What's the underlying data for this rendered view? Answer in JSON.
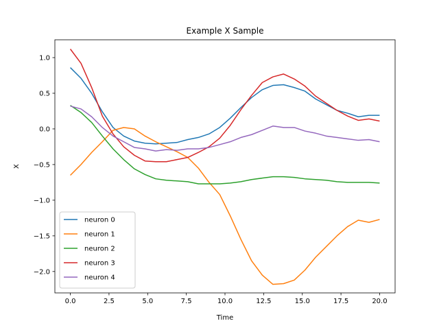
{
  "chart_data": {
    "type": "line",
    "title": "Example X Sample",
    "xlabel": "Time",
    "ylabel": "X",
    "xlim": [
      -1.0,
      21.0
    ],
    "ylim": [
      -2.3,
      1.25
    ],
    "xticks": [
      0.0,
      2.5,
      5.0,
      7.5,
      10.0,
      12.5,
      15.0,
      17.5,
      20.0
    ],
    "xtick_labels": [
      "0.0",
      "2.5",
      "5.0",
      "7.5",
      "10.0",
      "12.5",
      "15.0",
      "17.5",
      "20.0"
    ],
    "yticks": [
      1.0,
      0.5,
      0.0,
      -0.5,
      -1.0,
      -1.5,
      -2.0
    ],
    "ytick_labels": [
      "1.0",
      "0.5",
      "0.0",
      "−0.5",
      "−1.0",
      "−1.5",
      "−2.0"
    ],
    "grid": false,
    "legend_position": "lower-left",
    "x": [
      0.0,
      0.69,
      1.38,
      2.07,
      2.76,
      3.45,
      4.14,
      4.83,
      5.52,
      6.21,
      6.9,
      7.59,
      8.28,
      8.97,
      9.66,
      10.34,
      11.03,
      11.72,
      12.41,
      13.1,
      13.79,
      14.48,
      15.17,
      15.86,
      16.55,
      17.24,
      17.93,
      18.62,
      19.31,
      20.0
    ],
    "series": [
      {
        "name": "neuron 0",
        "color": "#1f77b4",
        "values": [
          0.86,
          0.71,
          0.5,
          0.24,
          0.02,
          -0.1,
          -0.17,
          -0.2,
          -0.21,
          -0.2,
          -0.19,
          -0.15,
          -0.12,
          -0.07,
          0.02,
          0.15,
          0.3,
          0.44,
          0.55,
          0.61,
          0.62,
          0.58,
          0.53,
          0.42,
          0.34,
          0.26,
          0.22,
          0.17,
          0.19,
          0.19
        ]
      },
      {
        "name": "neuron 1",
        "color": "#ff7f0e",
        "values": [
          -0.65,
          -0.5,
          -0.33,
          -0.18,
          -0.02,
          0.02,
          0.0,
          -0.1,
          -0.18,
          -0.25,
          -0.32,
          -0.4,
          -0.55,
          -0.75,
          -0.92,
          -1.22,
          -1.55,
          -1.85,
          -2.05,
          -2.18,
          -2.17,
          -2.12,
          -1.98,
          -1.8,
          -1.65,
          -1.5,
          -1.37,
          -1.28,
          -1.31,
          -1.27
        ]
      },
      {
        "name": "neuron 2",
        "color": "#2ca02c",
        "values": [
          0.33,
          0.23,
          0.09,
          -0.1,
          -0.28,
          -0.43,
          -0.56,
          -0.64,
          -0.7,
          -0.72,
          -0.73,
          -0.74,
          -0.77,
          -0.77,
          -0.77,
          -0.76,
          -0.74,
          -0.71,
          -0.69,
          -0.67,
          -0.67,
          -0.68,
          -0.7,
          -0.71,
          -0.72,
          -0.74,
          -0.75,
          -0.75,
          -0.75,
          -0.76
        ]
      },
      {
        "name": "neuron 3",
        "color": "#d62728",
        "values": [
          1.12,
          0.92,
          0.58,
          0.18,
          -0.07,
          -0.25,
          -0.37,
          -0.45,
          -0.46,
          -0.46,
          -0.43,
          -0.4,
          -0.33,
          -0.25,
          -0.13,
          0.05,
          0.27,
          0.47,
          0.65,
          0.73,
          0.77,
          0.7,
          0.6,
          0.46,
          0.36,
          0.26,
          0.18,
          0.12,
          0.14,
          0.11
        ]
      },
      {
        "name": "neuron 4",
        "color": "#9467bd",
        "values": [
          0.32,
          0.28,
          0.17,
          0.02,
          -0.1,
          -0.18,
          -0.26,
          -0.28,
          -0.31,
          -0.29,
          -0.3,
          -0.28,
          -0.28,
          -0.26,
          -0.22,
          -0.18,
          -0.12,
          -0.08,
          -0.02,
          0.04,
          0.02,
          0.02,
          -0.03,
          -0.06,
          -0.1,
          -0.12,
          -0.14,
          -0.16,
          -0.15,
          -0.18
        ]
      }
    ]
  }
}
